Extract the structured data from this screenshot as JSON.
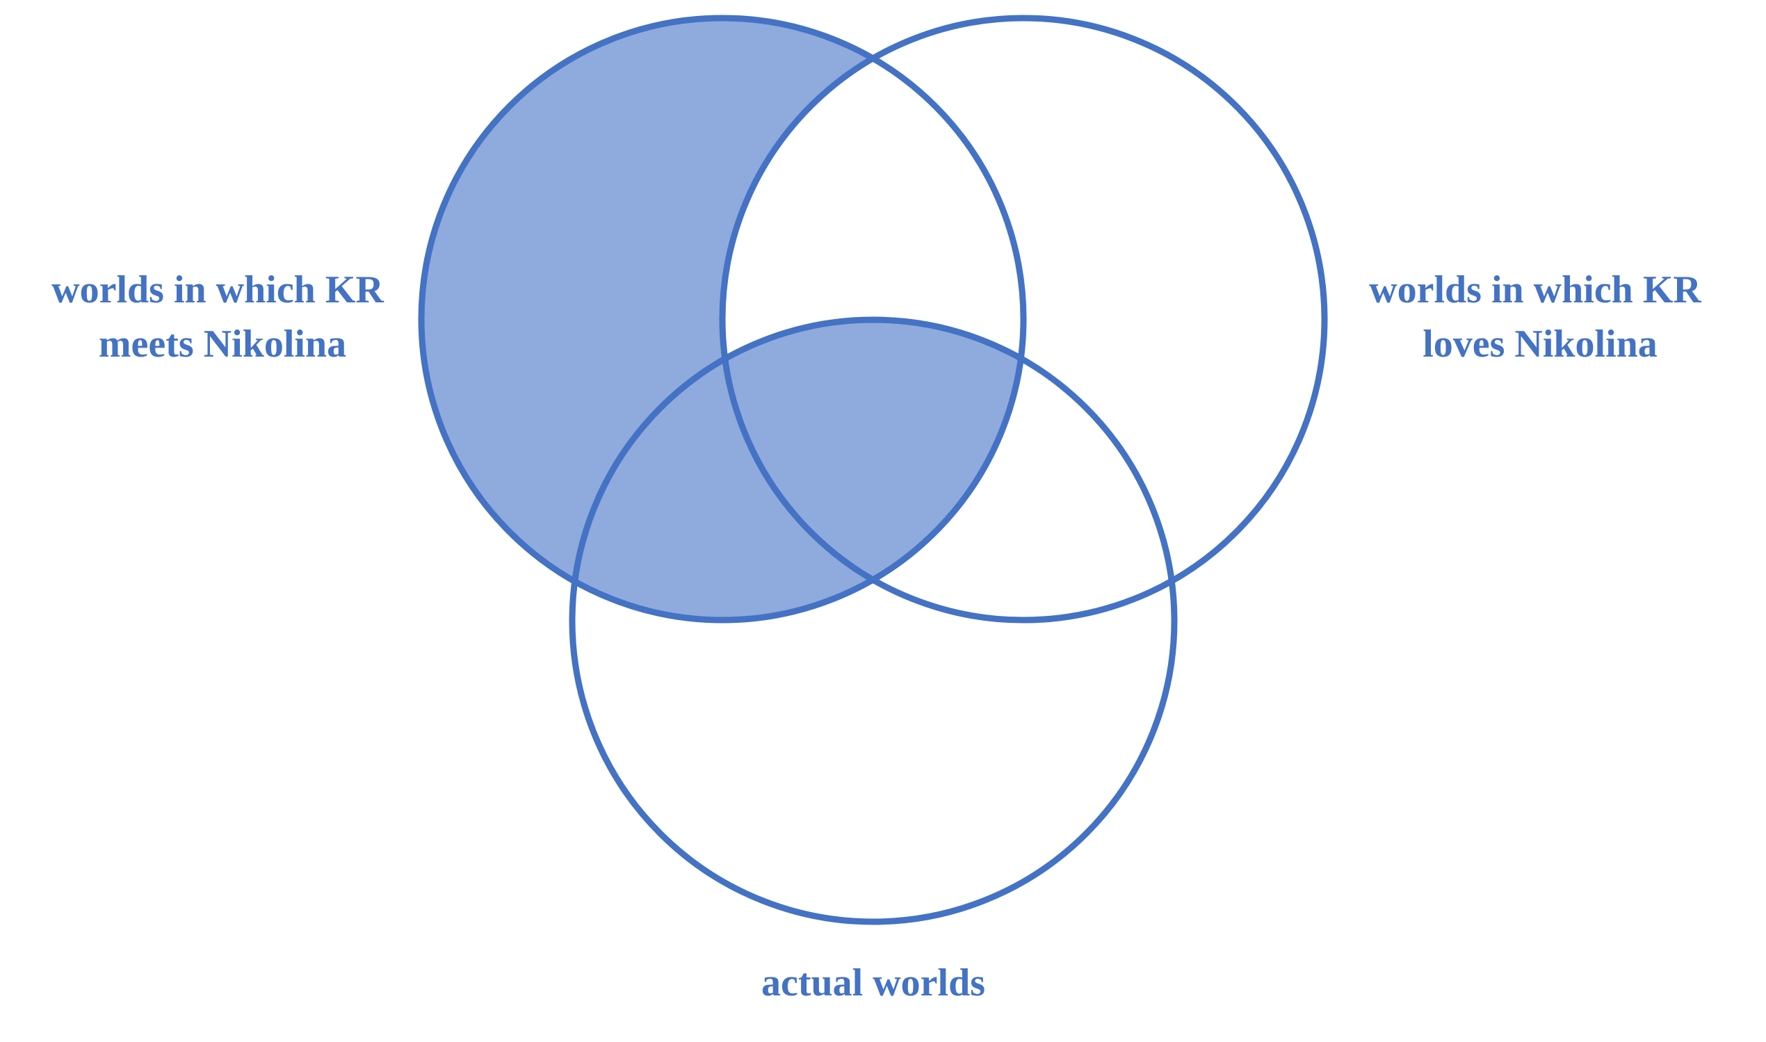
{
  "diagram": {
    "type": "venn",
    "sets": [
      {
        "id": "meets",
        "lines": [
          "worlds in which KR",
          "meets Nikolina"
        ]
      },
      {
        "id": "loves",
        "lines": [
          "worlds in which KR",
          "loves Nikolina"
        ]
      },
      {
        "id": "actual",
        "lines": [
          "actual worlds"
        ]
      }
    ],
    "shaded_regions": [
      "meets only",
      "meets and actual, not loves",
      "meets and loves and actual"
    ],
    "colors": {
      "outline": "#4472C4",
      "fill": "#8FAADC",
      "label": "#4472C4",
      "background": "#FFFFFF"
    }
  }
}
